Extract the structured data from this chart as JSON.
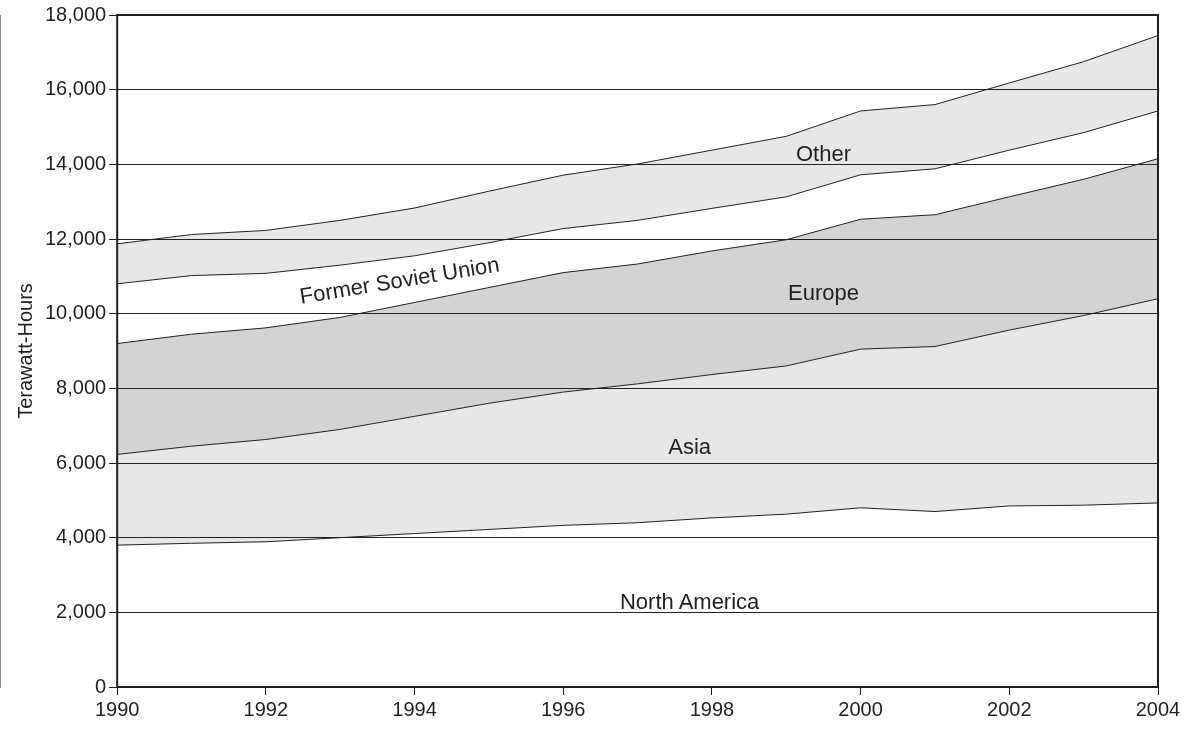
{
  "chart_data": {
    "type": "area",
    "stacked": true,
    "ylabel": "Terawatt-Hours",
    "grid": "y",
    "legend": false,
    "x": [
      1990,
      1991,
      1992,
      1993,
      1994,
      1995,
      1996,
      1997,
      1998,
      1999,
      2000,
      2001,
      2002,
      2003,
      2004
    ],
    "xlim": [
      1990,
      2004
    ],
    "xticks": [
      1990,
      1992,
      1994,
      1996,
      1998,
      2000,
      2002,
      2004
    ],
    "ylim": [
      0,
      18000
    ],
    "yticks": [
      {
        "value": 0,
        "label": "0"
      },
      {
        "value": 2000,
        "label": "2,000"
      },
      {
        "value": 4000,
        "label": "4,000"
      },
      {
        "value": 6000,
        "label": "6,000"
      },
      {
        "value": 8000,
        "label": "8,000"
      },
      {
        "value": 10000,
        "label": "10,000"
      },
      {
        "value": 12000,
        "label": "12,000"
      },
      {
        "value": 14000,
        "label": "14,000"
      },
      {
        "value": 16000,
        "label": "16,000"
      },
      {
        "value": 18000,
        "label": "18,000"
      }
    ],
    "series": [
      {
        "name": "North America",
        "color": "#ffffff",
        "values": [
          3800,
          3850,
          3890,
          4000,
          4110,
          4220,
          4330,
          4400,
          4530,
          4630,
          4800,
          4700,
          4850,
          4870,
          4930
        ]
      },
      {
        "name": "Asia",
        "color": "#e6e7e8",
        "values": [
          2430,
          2600,
          2740,
          2900,
          3140,
          3380,
          3570,
          3720,
          3840,
          3970,
          4250,
          4420,
          4710,
          5080,
          5470
        ]
      },
      {
        "name": "Europe",
        "color": "#d1d3d4",
        "values": [
          2970,
          3000,
          2990,
          3000,
          3050,
          3100,
          3200,
          3210,
          3310,
          3380,
          3480,
          3530,
          3570,
          3650,
          3750
        ]
      },
      {
        "name": "Former Soviet Union",
        "color": "#ffffff",
        "values": [
          1600,
          1570,
          1460,
          1400,
          1250,
          1200,
          1180,
          1170,
          1140,
          1150,
          1190,
          1230,
          1250,
          1250,
          1280
        ]
      },
      {
        "name": "Other",
        "color": "#e6e7e8",
        "values": [
          1070,
          1100,
          1150,
          1200,
          1280,
          1380,
          1430,
          1510,
          1560,
          1620,
          1710,
          1720,
          1800,
          1900,
          2020
        ]
      }
    ]
  }
}
